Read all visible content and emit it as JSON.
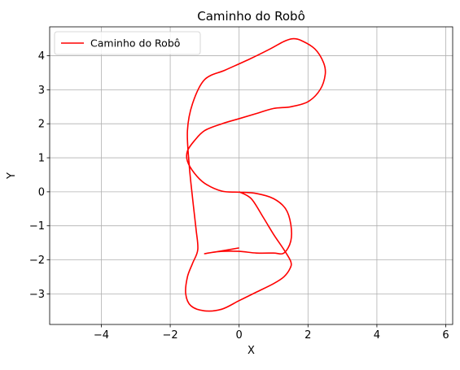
{
  "chart_data": {
    "type": "line",
    "title": "Caminho do Robô",
    "xlabel": "X",
    "ylabel": "Y",
    "xlim": [
      -5.5,
      6.2
    ],
    "ylim": [
      -3.9,
      4.85
    ],
    "grid": true,
    "legend_position": "top-left",
    "xticks": [
      -4,
      -2,
      0,
      2,
      4,
      6
    ],
    "yticks": [
      -3,
      -2,
      -1,
      0,
      1,
      2,
      3,
      4
    ],
    "xtick_labels": [
      "−4",
      "−2",
      "0",
      "2",
      "4",
      "6"
    ],
    "ytick_labels": [
      "−3",
      "−2",
      "−1",
      "0",
      "1",
      "2",
      "3",
      "4"
    ],
    "series": [
      {
        "name": "Caminho do Robô",
        "color": "#ff0000",
        "x": [
          0,
          0.35,
          0.7,
          1.0,
          1.3,
          1.5,
          1.48,
          1.3,
          1.0,
          0.5,
          0.0,
          -0.5,
          -1.0,
          -1.4,
          -1.55,
          -1.5,
          -1.35,
          -1.2,
          -1.25,
          -1.35,
          -1.45,
          -1.5,
          -1.35,
          -1.0,
          -0.4,
          0.3,
          0.9,
          1.3,
          1.55,
          1.8,
          2.2,
          2.45,
          2.5,
          2.35,
          2.0,
          1.5,
          1.0,
          0.5,
          0.0,
          -0.5,
          -1.0,
          -1.3,
          -1.5,
          -1.5,
          -1.3,
          -1.0,
          -0.5,
          0.0,
          0.5,
          1.0,
          1.35,
          1.5,
          1.5,
          1.3,
          1.0,
          0.5,
          0.0,
          -0.5,
          -0.9,
          -1.0,
          -0.9,
          -0.7,
          -0.4,
          0.0
        ],
        "y": [
          0.0,
          -0.2,
          -0.75,
          -1.25,
          -1.7,
          -2.05,
          -2.25,
          -2.5,
          -2.7,
          -2.95,
          -3.2,
          -3.45,
          -3.5,
          -3.35,
          -3.0,
          -2.5,
          -2.1,
          -1.7,
          -1.1,
          -0.2,
          0.8,
          1.8,
          2.6,
          3.3,
          3.58,
          3.9,
          4.2,
          4.42,
          4.5,
          4.45,
          4.2,
          3.8,
          3.45,
          3.0,
          2.65,
          2.5,
          2.45,
          2.3,
          2.15,
          2.0,
          1.8,
          1.5,
          1.2,
          0.9,
          0.55,
          0.25,
          0.02,
          -0.01,
          -0.05,
          -0.2,
          -0.5,
          -0.95,
          -1.45,
          -1.8,
          -1.8,
          -1.8,
          -1.75,
          -1.75,
          -1.8,
          -1.82,
          -1.8,
          -1.77,
          -1.72,
          -1.65
        ]
      }
    ]
  }
}
